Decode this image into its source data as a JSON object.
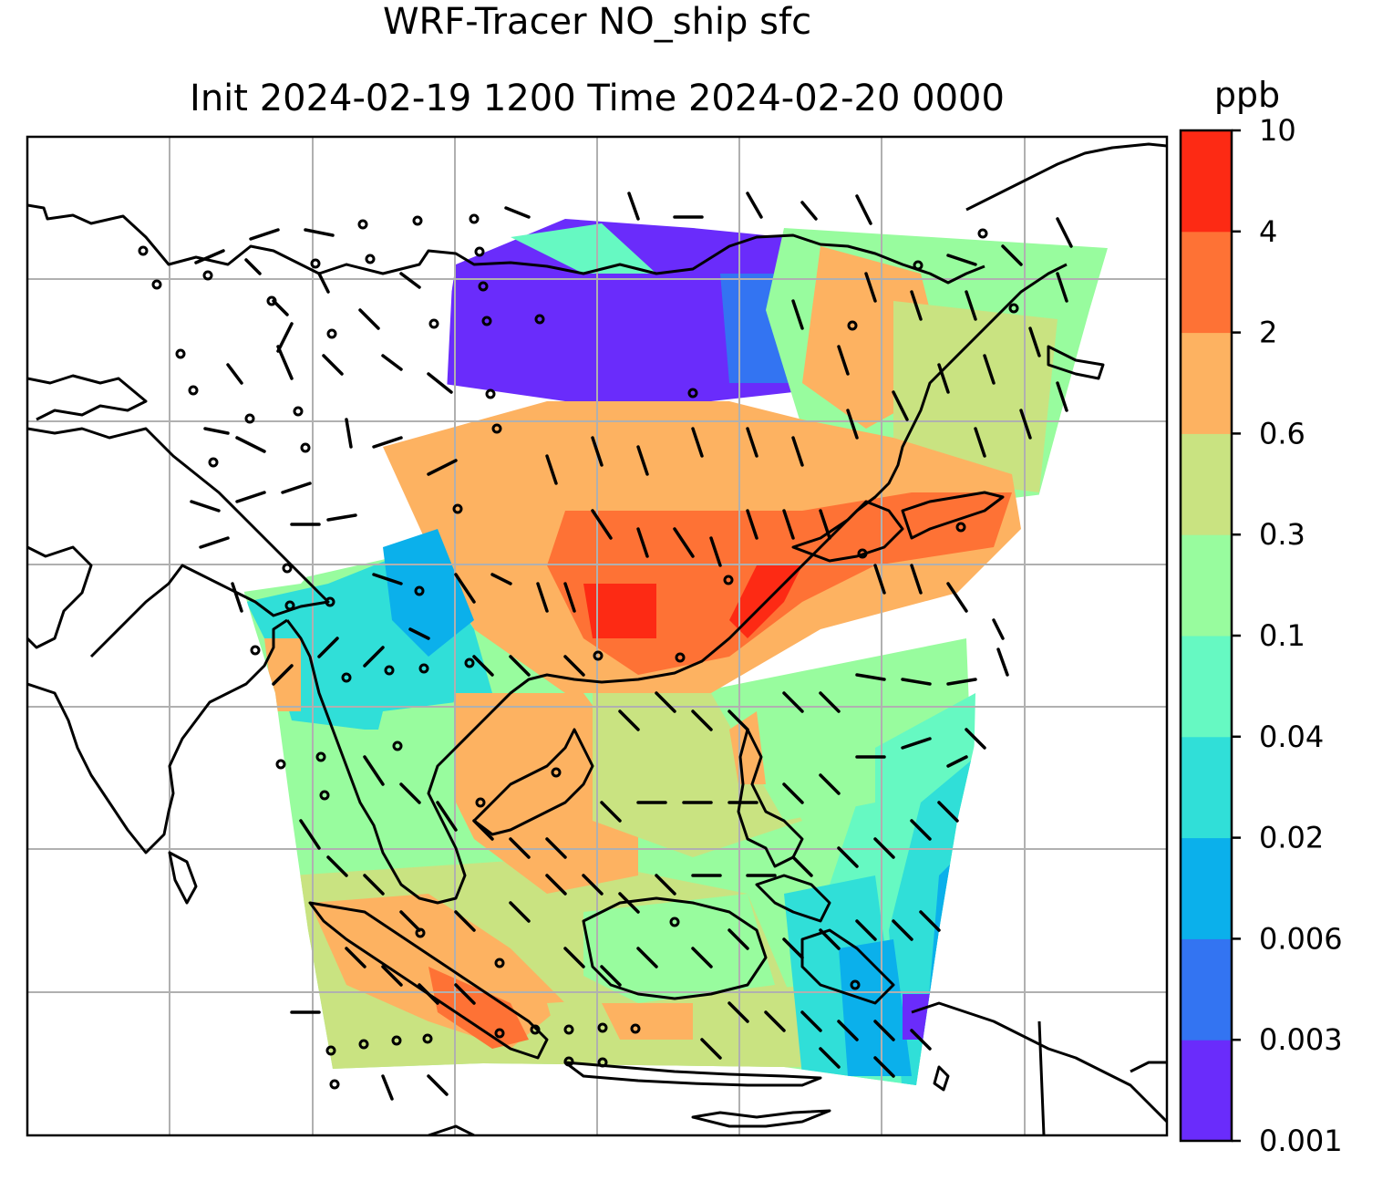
{
  "title_line1": "WRF-Tracer NO_ship sfc",
  "title_line2": "Init 2024-02-19 1200 Time 2024-02-20 0000",
  "colorbar": {
    "unit": "ppb",
    "levels": [
      "0.001",
      "0.003",
      "0.006",
      "0.02",
      "0.04",
      "0.1",
      "0.3",
      "0.6",
      "2",
      "4",
      "10"
    ],
    "colors": [
      "#6a2cfb",
      "#3374f2",
      "#0bb0eb",
      "#30dfd8",
      "#66f9c2",
      "#98fc9e",
      "#c9e381",
      "#fdb261",
      "#fe7235",
      "#fd2a14"
    ]
  },
  "map": {
    "land_outline_color": "#000000",
    "gridline_color": "#b0b0b0",
    "wind_barb_color": "#000000"
  }
}
